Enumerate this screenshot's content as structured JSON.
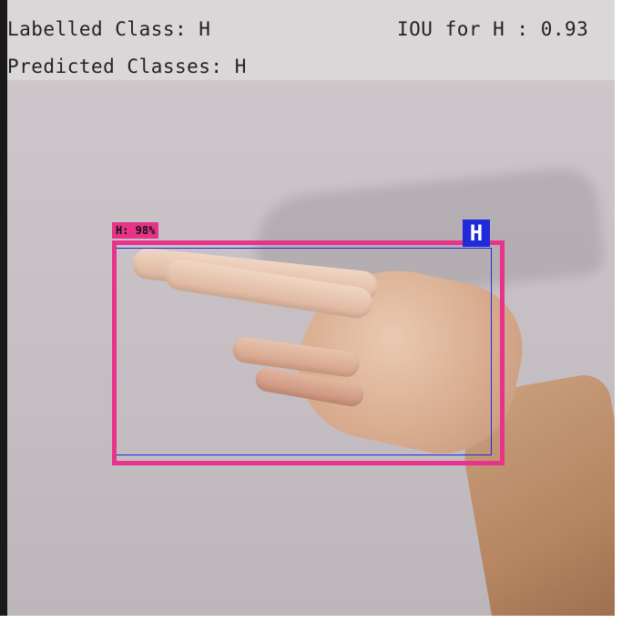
{
  "hud": {
    "labelled_class": "Labelled Class: H",
    "predicted_classes": "Predicted Classes: H",
    "iou": "IOU for H : 0.93"
  },
  "detection": {
    "predicted_label": "H: 98%",
    "ground_truth_label": "H",
    "predicted_color": "#e8338a",
    "ground_truth_color": "#1f2ad8"
  }
}
